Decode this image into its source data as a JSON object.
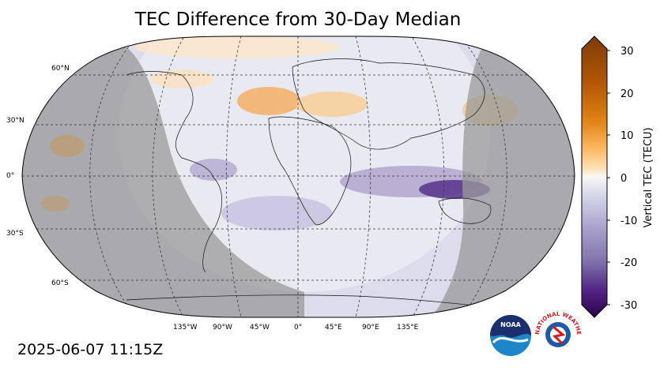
{
  "title": "TEC Difference from 30-Day Median",
  "timestamp": "2025-06-07 11:15Z",
  "colorbar": {
    "label": "Vertical TEC (TECU)",
    "ticks": [
      "30",
      "20",
      "10",
      "0",
      "-10",
      "-20",
      "-30"
    ],
    "range": [
      -30,
      30
    ]
  },
  "lat_labels": [
    "60°N",
    "30°N",
    "0°",
    "30°S",
    "60°S"
  ],
  "lon_labels": [
    "135°W",
    "90°W",
    "45°W",
    "0°",
    "45°E",
    "90°E",
    "135°E"
  ],
  "logos": {
    "noaa": "NOAA",
    "nws": "NATIONAL WEATHER SERVICE"
  },
  "colors": {
    "positive": "#b35806",
    "neutral": "#f7f7f7",
    "negative": "#542788",
    "night": "#9a9a9a"
  }
}
